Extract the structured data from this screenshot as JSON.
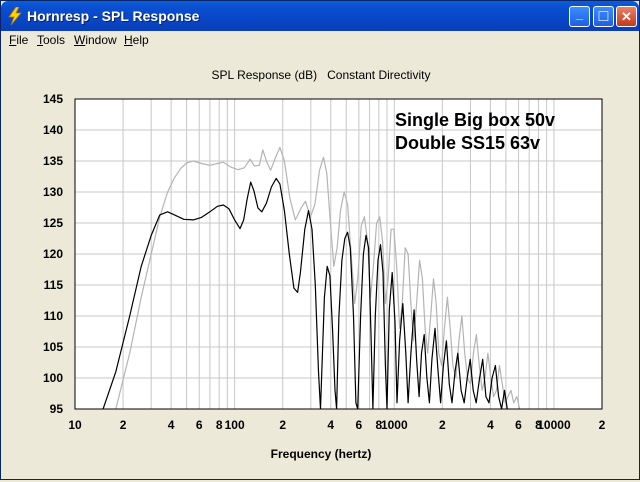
{
  "window": {
    "title": "Hornresp - SPL Response",
    "minimize": "_",
    "maximize": "□",
    "close": "✕"
  },
  "menu": {
    "items": [
      "File",
      "Tools",
      "Window",
      "Help"
    ]
  },
  "chart_data": {
    "type": "line",
    "title": "SPL Response (dB)   Constant Directivity",
    "xlabel": "Frequency (hertz)",
    "ylabel": "",
    "xscale": "log",
    "xlim": [
      10,
      20000
    ],
    "ylim": [
      95,
      145
    ],
    "yticks": [
      95,
      100,
      105,
      110,
      115,
      120,
      125,
      130,
      135,
      140,
      145
    ],
    "xtick_labels": [
      {
        "x": 10,
        "label": "10"
      },
      {
        "x": 20,
        "label": "2"
      },
      {
        "x": 40,
        "label": "4"
      },
      {
        "x": 60,
        "label": "6"
      },
      {
        "x": 80,
        "label": "8"
      },
      {
        "x": 100,
        "label": "100"
      },
      {
        "x": 200,
        "label": "2"
      },
      {
        "x": 400,
        "label": "4"
      },
      {
        "x": 600,
        "label": "6"
      },
      {
        "x": 800,
        "label": "8"
      },
      {
        "x": 1000,
        "label": "1000"
      },
      {
        "x": 2000,
        "label": "2"
      },
      {
        "x": 4000,
        "label": "4"
      },
      {
        "x": 6000,
        "label": "6"
      },
      {
        "x": 8000,
        "label": "8"
      },
      {
        "x": 10000,
        "label": "10000"
      },
      {
        "x": 20000,
        "label": "2"
      }
    ],
    "grid": true,
    "annotations": [
      "Single Big box 50v",
      "Double SS15 63v"
    ],
    "colors": {
      "series_a": "#000000",
      "series_b": "#b4b4b4",
      "grid": "#c8c8c8"
    },
    "series": [
      {
        "values": [
          [
            15,
            95
          ],
          [
            18,
            101
          ],
          [
            22,
            110
          ],
          [
            26,
            118
          ],
          [
            30,
            123
          ],
          [
            34,
            126.3
          ],
          [
            38,
            126.8
          ],
          [
            42,
            126.3
          ],
          [
            48,
            125.6
          ],
          [
            55,
            125.5
          ],
          [
            62,
            125.9
          ],
          [
            70,
            126.8
          ],
          [
            78,
            127.7
          ],
          [
            85,
            127.9
          ],
          [
            92,
            127.3
          ],
          [
            100,
            125.5
          ],
          [
            108,
            124.1
          ],
          [
            114,
            125.5
          ],
          [
            120,
            129
          ],
          [
            126,
            131.6
          ],
          [
            132,
            130.2
          ],
          [
            140,
            127.4
          ],
          [
            148,
            126.8
          ],
          [
            158,
            128.2
          ],
          [
            170,
            130.8
          ],
          [
            182,
            132.2
          ],
          [
            192,
            131.3
          ],
          [
            205,
            127
          ],
          [
            220,
            120
          ],
          [
            235,
            114.5
          ],
          [
            248,
            113.8
          ],
          [
            258,
            117
          ],
          [
            275,
            124
          ],
          [
            290,
            127
          ],
          [
            305,
            124
          ],
          [
            320,
            115
          ],
          [
            335,
            101
          ],
          [
            345,
            95
          ],
          [
            365,
            113
          ],
          [
            380,
            118
          ],
          [
            395,
            116.5
          ],
          [
            410,
            108
          ],
          [
            425,
            98
          ],
          [
            435,
            95
          ],
          [
            450,
            110
          ],
          [
            470,
            119
          ],
          [
            490,
            122.5
          ],
          [
            510,
            123.5
          ],
          [
            530,
            121
          ],
          [
            555,
            110
          ],
          [
            575,
            96
          ],
          [
            590,
            95
          ],
          [
            615,
            110
          ],
          [
            640,
            120
          ],
          [
            665,
            123
          ],
          [
            690,
            121
          ],
          [
            715,
            107
          ],
          [
            735,
            95
          ],
          [
            760,
            110
          ],
          [
            790,
            119
          ],
          [
            820,
            121.5
          ],
          [
            850,
            117
          ],
          [
            880,
            102
          ],
          [
            900,
            95
          ],
          [
            930,
            111
          ],
          [
            970,
            117
          ],
          [
            1010,
            109
          ],
          [
            1040,
            96
          ],
          [
            1080,
            106
          ],
          [
            1130,
            112
          ],
          [
            1180,
            104
          ],
          [
            1220,
            96
          ],
          [
            1270,
            104
          ],
          [
            1330,
            111
          ],
          [
            1380,
            103
          ],
          [
            1430,
            97
          ],
          [
            1480,
            104
          ],
          [
            1540,
            107
          ],
          [
            1600,
            100
          ],
          [
            1660,
            96
          ],
          [
            1720,
            103
          ],
          [
            1800,
            108
          ],
          [
            1880,
            101
          ],
          [
            1950,
            96
          ],
          [
            2030,
            102
          ],
          [
            2120,
            106
          ],
          [
            2210,
            99
          ],
          [
            2300,
            96
          ],
          [
            2400,
            101
          ],
          [
            2500,
            104
          ],
          [
            2620,
            98
          ],
          [
            2740,
            96
          ],
          [
            2860,
            100
          ],
          [
            2990,
            103
          ],
          [
            3120,
            98
          ],
          [
            3260,
            96
          ],
          [
            3420,
            100
          ],
          [
            3580,
            103
          ],
          [
            3750,
            97
          ],
          [
            3920,
            96
          ],
          [
            4100,
            100
          ],
          [
            4300,
            102
          ],
          [
            4500,
            97
          ],
          [
            4700,
            95
          ],
          [
            4900,
            98
          ],
          [
            5100,
            95
          ]
        ]
      },
      {
        "values": [
          [
            18,
            95
          ],
          [
            22,
            104
          ],
          [
            26,
            113
          ],
          [
            30,
            120
          ],
          [
            34,
            126
          ],
          [
            38,
            130
          ],
          [
            42,
            132.3
          ],
          [
            46,
            133.8
          ],
          [
            50,
            134.7
          ],
          [
            55,
            135
          ],
          [
            62,
            134.6
          ],
          [
            70,
            134.3
          ],
          [
            78,
            134.6
          ],
          [
            85,
            134.8
          ],
          [
            95,
            134
          ],
          [
            105,
            133.6
          ],
          [
            115,
            133.9
          ],
          [
            125,
            135.3
          ],
          [
            133,
            134.2
          ],
          [
            143,
            134.3
          ],
          [
            150,
            136.8
          ],
          [
            158,
            135
          ],
          [
            168,
            133.5
          ],
          [
            180,
            135.5
          ],
          [
            192,
            137.2
          ],
          [
            205,
            135
          ],
          [
            222,
            129
          ],
          [
            240,
            125.5
          ],
          [
            262,
            127.5
          ],
          [
            278,
            128.5
          ],
          [
            298,
            126
          ],
          [
            318,
            128
          ],
          [
            340,
            133.5
          ],
          [
            360,
            135.6
          ],
          [
            378,
            133
          ],
          [
            398,
            125
          ],
          [
            418,
            118
          ],
          [
            438,
            121
          ],
          [
            460,
            127
          ],
          [
            485,
            130
          ],
          [
            510,
            128
          ],
          [
            540,
            119
          ],
          [
            565,
            112
          ],
          [
            590,
            116
          ],
          [
            620,
            124.5
          ],
          [
            650,
            126
          ],
          [
            680,
            122
          ],
          [
            710,
            113
          ],
          [
            740,
            118
          ],
          [
            775,
            125
          ],
          [
            810,
            126
          ],
          [
            845,
            122
          ],
          [
            880,
            112
          ],
          [
            915,
            116
          ],
          [
            955,
            124
          ],
          [
            995,
            124
          ],
          [
            1035,
            118
          ],
          [
            1080,
            108
          ],
          [
            1120,
            112
          ],
          [
            1170,
            121
          ],
          [
            1220,
            120
          ],
          [
            1270,
            112
          ],
          [
            1320,
            106
          ],
          [
            1380,
            112
          ],
          [
            1440,
            119
          ],
          [
            1500,
            116
          ],
          [
            1560,
            108
          ],
          [
            1620,
            104
          ],
          [
            1690,
            110
          ],
          [
            1760,
            116
          ],
          [
            1830,
            112
          ],
          [
            1900,
            104
          ],
          [
            1980,
            102
          ],
          [
            2060,
            108
          ],
          [
            2150,
            113
          ],
          [
            2240,
            108
          ],
          [
            2330,
            102
          ],
          [
            2430,
            100
          ],
          [
            2540,
            106
          ],
          [
            2650,
            110
          ],
          [
            2760,
            104
          ],
          [
            2880,
            100
          ],
          [
            3000,
            99
          ],
          [
            3130,
            104
          ],
          [
            3270,
            107
          ],
          [
            3410,
            102
          ],
          [
            3550,
            98
          ],
          [
            3700,
            100
          ],
          [
            3860,
            104
          ],
          [
            4020,
            100
          ],
          [
            4190,
            97
          ],
          [
            4370,
            98
          ],
          [
            4560,
            102
          ],
          [
            4750,
            99
          ],
          [
            4950,
            96
          ],
          [
            5150,
            97
          ],
          [
            5380,
            98
          ],
          [
            5600,
            96
          ],
          [
            5850,
            97
          ],
          [
            6100,
            95
          ]
        ]
      }
    ]
  }
}
